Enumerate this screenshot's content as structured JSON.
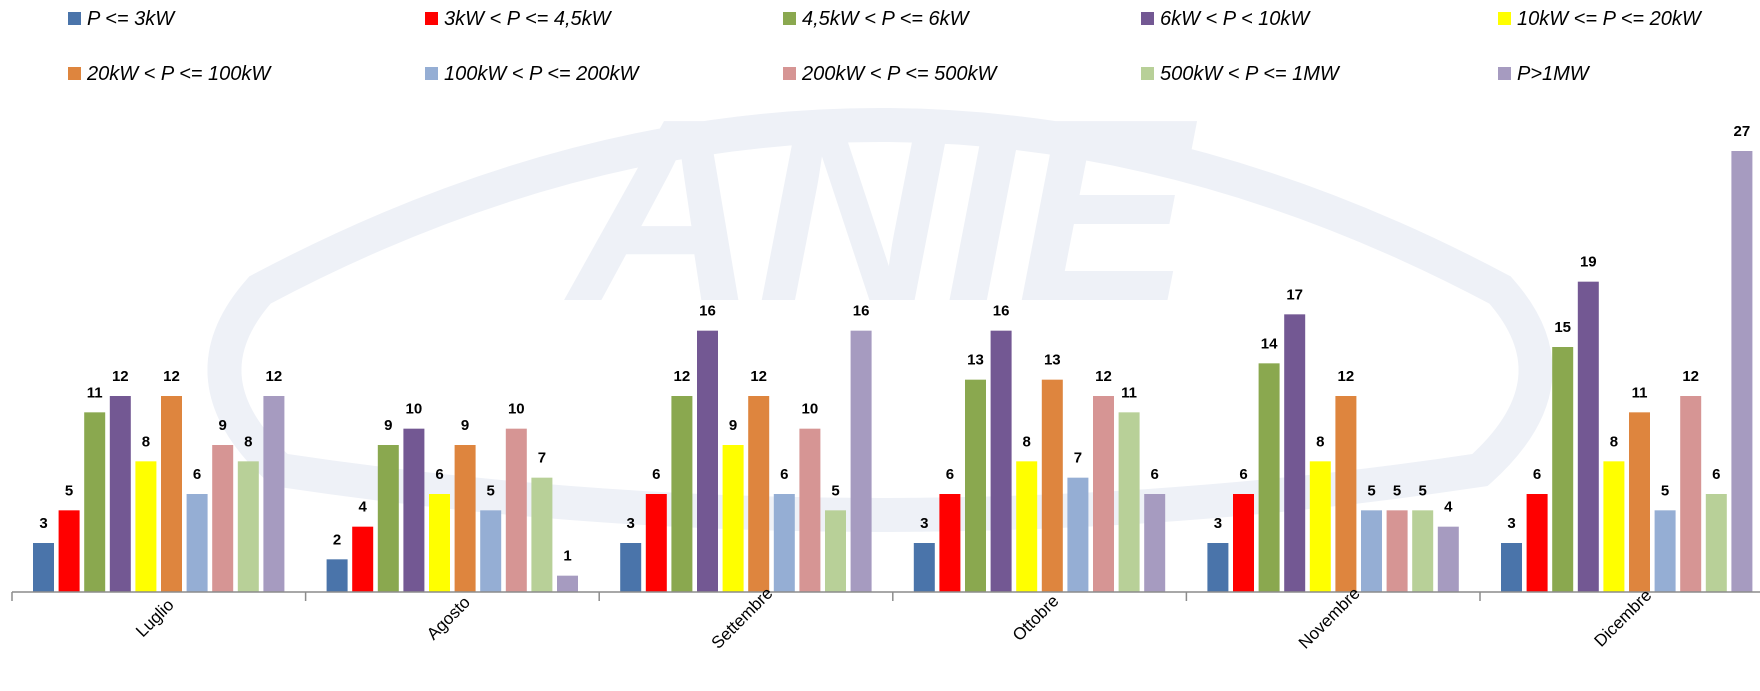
{
  "chart_data": {
    "type": "bar",
    "title": "",
    "xlabel": "",
    "ylabel": "",
    "ylim": [
      0,
      28
    ],
    "grid": false,
    "legend_position": "top",
    "categories": [
      "Luglio",
      "Agosto",
      "Settembre",
      "Ottobre",
      "Novembre",
      "Dicembre"
    ],
    "series": [
      {
        "name": "P <= 3kW",
        "color": "#4a74aa",
        "values": [
          3,
          2,
          3,
          3,
          3,
          3
        ]
      },
      {
        "name": "3kW < P <= 4,5kW",
        "color": "#ff0000",
        "values": [
          5,
          4,
          6,
          6,
          6,
          6
        ]
      },
      {
        "name": "4,5kW < P <= 6kW",
        "color": "#8aa84f",
        "values": [
          11,
          9,
          12,
          13,
          14,
          15
        ]
      },
      {
        "name": "6kW < P < 10kW",
        "color": "#735893",
        "values": [
          12,
          10,
          16,
          16,
          17,
          19
        ]
      },
      {
        "name": "10kW <= P <= 20kW",
        "color": "#ffff00",
        "values": [
          8,
          6,
          9,
          8,
          8,
          8
        ]
      },
      {
        "name": "20kW < P <= 100kW",
        "color": "#de853e",
        "values": [
          12,
          9,
          12,
          13,
          12,
          11
        ]
      },
      {
        "name": "100kW < P <= 200kW",
        "color": "#95aed4",
        "values": [
          6,
          5,
          6,
          7,
          5,
          5
        ]
      },
      {
        "name": "200kW < P <= 500kW",
        "color": "#d69594",
        "values": [
          9,
          10,
          10,
          12,
          5,
          12
        ]
      },
      {
        "name": "500kW < P <= 1MW",
        "color": "#b8d098",
        "values": [
          8,
          7,
          5,
          11,
          5,
          6
        ]
      },
      {
        "name": "P>1MW",
        "color": "#a69bc0",
        "values": [
          12,
          1,
          16,
          6,
          4,
          27
        ]
      }
    ]
  },
  "watermark": {
    "text": "ANIE",
    "color": "#eef1f7"
  }
}
